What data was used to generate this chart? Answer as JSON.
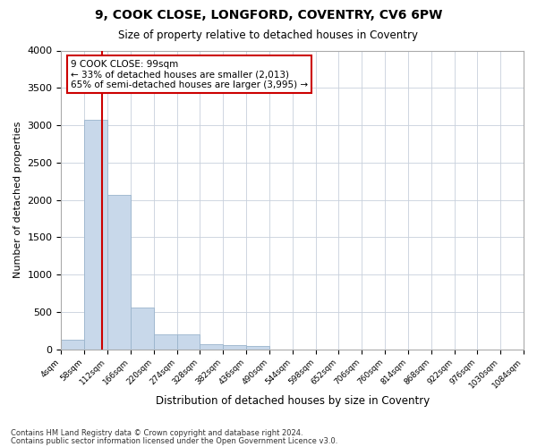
{
  "title1": "9, COOK CLOSE, LONGFORD, COVENTRY, CV6 6PW",
  "title2": "Size of property relative to detached houses in Coventry",
  "xlabel": "Distribution of detached houses by size in Coventry",
  "ylabel": "Number of detached properties",
  "footer1": "Contains HM Land Registry data © Crown copyright and database right 2024.",
  "footer2": "Contains public sector information licensed under the Open Government Licence v3.0.",
  "annotation_line1": "9 COOK CLOSE: 99sqm",
  "annotation_line2": "← 33% of detached houses are smaller (2,013)",
  "annotation_line3": "65% of semi-detached houses are larger (3,995) →",
  "property_size": 99,
  "bar_color": "#c8d8ea",
  "bar_edgecolor": "#9ab4cc",
  "line_color": "#cc0000",
  "annotation_box_facecolor": "#ffffff",
  "annotation_box_edgecolor": "#cc0000",
  "background_color": "#ffffff",
  "grid_color": "#c8d0dc",
  "bin_edges": [
    4,
    58,
    112,
    166,
    220,
    274,
    328,
    382,
    436,
    490,
    544,
    598,
    652,
    706,
    760,
    814,
    868,
    922,
    976,
    1030,
    1084
  ],
  "bar_heights": [
    130,
    3070,
    2070,
    560,
    200,
    200,
    70,
    50,
    40,
    0,
    0,
    0,
    0,
    0,
    0,
    0,
    0,
    0,
    0,
    0
  ],
  "ylim": [
    0,
    4000
  ],
  "yticks": [
    0,
    500,
    1000,
    1500,
    2000,
    2500,
    3000,
    3500,
    4000
  ],
  "figsize": [
    6.0,
    5.0
  ],
  "dpi": 100
}
